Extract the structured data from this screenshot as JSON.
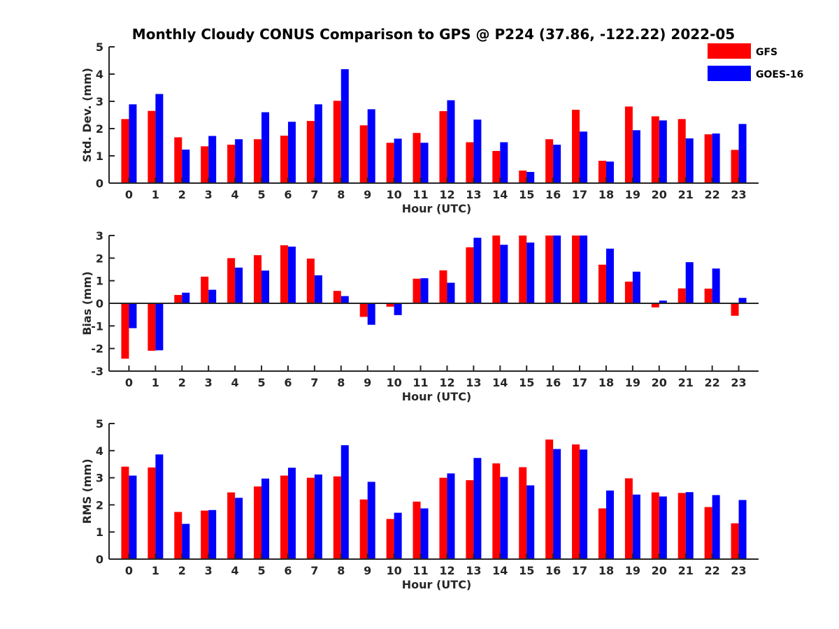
{
  "title": "Monthly Cloudy CONUS Comparison to GPS @ P224 (37.86, -122.22) 2022-05",
  "colors": {
    "GFS": "#ff0000",
    "GOES-16": "#0000ff"
  },
  "legend": {
    "entries": [
      "GFS",
      "GOES-16"
    ],
    "placement": "top-right"
  },
  "chart_data": [
    {
      "type": "bar",
      "ylabel": "Std. Dev. (mm)",
      "xlabel": "Hour (UTC)",
      "ylim": [
        0,
        5
      ],
      "yticks": [
        0,
        1,
        2,
        3,
        4,
        5
      ],
      "categories": [
        "0",
        "1",
        "2",
        "3",
        "4",
        "5",
        "6",
        "7",
        "8",
        "9",
        "10",
        "11",
        "12",
        "13",
        "14",
        "15",
        "16",
        "17",
        "18",
        "19",
        "20",
        "21",
        "22",
        "23"
      ],
      "series": [
        {
          "name": "GFS",
          "values": [
            2.35,
            2.65,
            1.68,
            1.35,
            1.41,
            1.61,
            1.74,
            2.28,
            3.02,
            2.12,
            1.48,
            1.84,
            2.64,
            1.5,
            1.18,
            0.46,
            1.61,
            2.69,
            0.82,
            2.81,
            2.45,
            2.35,
            1.79,
            1.22
          ]
        },
        {
          "name": "GOES-16",
          "values": [
            2.89,
            3.27,
            1.23,
            1.73,
            1.61,
            2.6,
            2.25,
            2.89,
            4.18,
            2.71,
            1.63,
            1.48,
            3.04,
            2.33,
            1.5,
            0.41,
            1.41,
            1.89,
            0.79,
            1.94,
            2.3,
            1.64,
            1.82,
            2.17
          ]
        }
      ]
    },
    {
      "type": "bar",
      "ylabel": "Bias (mm)",
      "xlabel": "Hour (UTC)",
      "ylim": [
        -3,
        3
      ],
      "yticks": [
        -3,
        -2,
        -1,
        0,
        1,
        2,
        3
      ],
      "categories": [
        "0",
        "1",
        "2",
        "3",
        "4",
        "5",
        "6",
        "7",
        "8",
        "9",
        "10",
        "11",
        "12",
        "13",
        "14",
        "15",
        "16",
        "17",
        "18",
        "19",
        "20",
        "21",
        "22",
        "23"
      ],
      "series": [
        {
          "name": "GFS",
          "values": [
            -2.45,
            -2.1,
            0.37,
            1.18,
            2.0,
            2.13,
            2.57,
            1.98,
            0.55,
            -0.6,
            -0.15,
            1.09,
            1.46,
            2.48,
            3.0,
            3.0,
            3.0,
            3.0,
            1.71,
            0.96,
            -0.18,
            0.66,
            0.65,
            -0.55
          ]
        },
        {
          "name": "GOES-16",
          "values": [
            -1.1,
            -2.08,
            0.47,
            0.6,
            1.58,
            1.45,
            2.51,
            1.24,
            0.32,
            -0.95,
            -0.52,
            1.11,
            0.91,
            2.9,
            2.59,
            2.69,
            3.0,
            3.0,
            2.42,
            1.4,
            0.12,
            1.82,
            1.54,
            0.24
          ]
        }
      ]
    },
    {
      "type": "bar",
      "ylabel": "RMS (mm)",
      "xlabel": "Hour (UTC)",
      "ylim": [
        0,
        5
      ],
      "yticks": [
        0,
        1,
        2,
        3,
        4,
        5
      ],
      "categories": [
        "0",
        "1",
        "2",
        "3",
        "4",
        "5",
        "6",
        "7",
        "8",
        "9",
        "10",
        "11",
        "12",
        "13",
        "14",
        "15",
        "16",
        "17",
        "18",
        "19",
        "20",
        "21",
        "22",
        "23"
      ],
      "series": [
        {
          "name": "GFS",
          "values": [
            3.41,
            3.38,
            1.74,
            1.79,
            2.46,
            2.68,
            3.08,
            3.0,
            3.05,
            2.2,
            1.48,
            2.12,
            3.0,
            2.91,
            3.53,
            3.39,
            4.41,
            4.23,
            1.87,
            2.98,
            2.46,
            2.44,
            1.92,
            1.32
          ]
        },
        {
          "name": "GOES-16",
          "values": [
            3.08,
            3.86,
            1.3,
            1.81,
            2.26,
            2.97,
            3.37,
            3.12,
            4.2,
            2.85,
            1.71,
            1.87,
            3.16,
            3.73,
            3.03,
            2.72,
            4.06,
            4.04,
            2.53,
            2.38,
            2.31,
            2.47,
            2.36,
            2.18
          ]
        }
      ]
    }
  ]
}
